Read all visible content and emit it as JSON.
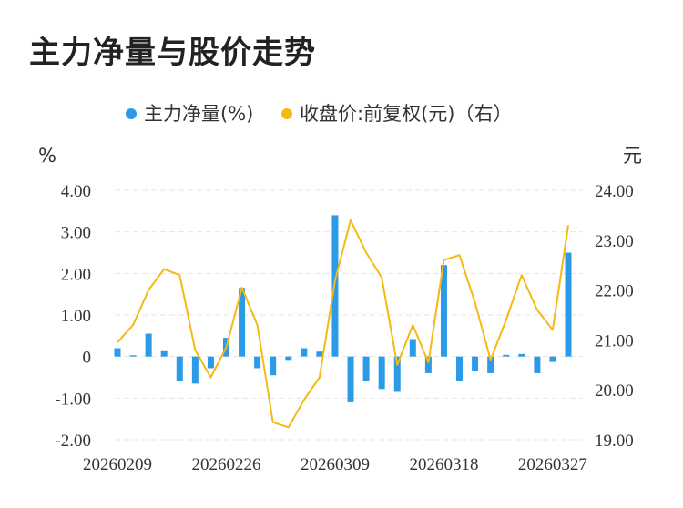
{
  "title": "主力净量与股价走势",
  "chart_data": {
    "type": "bar",
    "legend": {
      "position": "top-center",
      "items": [
        {
          "label": "主力净量(%)",
          "color": "#2b9be8",
          "marker": "dot"
        },
        {
          "label": "收盘价:前复权(元)（右）",
          "color": "#f5b914",
          "marker": "dot"
        }
      ]
    },
    "left_axis": {
      "unit": "%",
      "ylim": [
        -2,
        4
      ],
      "ticks": [
        4,
        3,
        2,
        1,
        0,
        -1,
        -2
      ],
      "tick_labels": [
        "4.00",
        "3.00",
        "2.00",
        "1.00",
        "0",
        "-1.00",
        "-2.00"
      ]
    },
    "right_axis": {
      "unit": "元",
      "ylim": [
        19,
        24
      ],
      "ticks": [
        24,
        23,
        22,
        21,
        20,
        19
      ],
      "tick_labels": [
        "24.00",
        "23.00",
        "22.00",
        "21.00",
        "20.00",
        "19.00"
      ]
    },
    "x_tick_labels": [
      "20260209",
      "20260226",
      "20260309",
      "20260318",
      "20260327"
    ],
    "x_tick_indices": [
      0,
      7,
      14,
      21,
      28
    ],
    "grid": true,
    "series": [
      {
        "name": "主力净量(%)",
        "type": "bar",
        "axis": "left",
        "color": "#2b9be8",
        "values": [
          0.2,
          0.03,
          0.55,
          0.15,
          -0.58,
          -0.65,
          -0.28,
          0.45,
          1.65,
          -0.28,
          -0.45,
          -0.08,
          0.2,
          0.12,
          3.4,
          -1.1,
          -0.58,
          -0.78,
          -0.85,
          0.42,
          -0.4,
          2.2,
          -0.58,
          -0.35,
          -0.4,
          0.04,
          0.06,
          -0.4,
          -0.13,
          2.5
        ]
      },
      {
        "name": "收盘价:前复权(元)（右）",
        "type": "line",
        "axis": "right",
        "color": "#f5b914",
        "values": [
          20.95,
          21.3,
          22.0,
          22.42,
          22.3,
          20.8,
          20.25,
          20.85,
          22.05,
          21.3,
          19.35,
          19.25,
          19.8,
          20.25,
          22.2,
          23.4,
          22.75,
          22.25,
          20.5,
          21.3,
          20.55,
          22.6,
          22.7,
          21.75,
          20.6,
          21.4,
          22.3,
          21.6,
          21.2,
          23.3
        ]
      }
    ]
  }
}
